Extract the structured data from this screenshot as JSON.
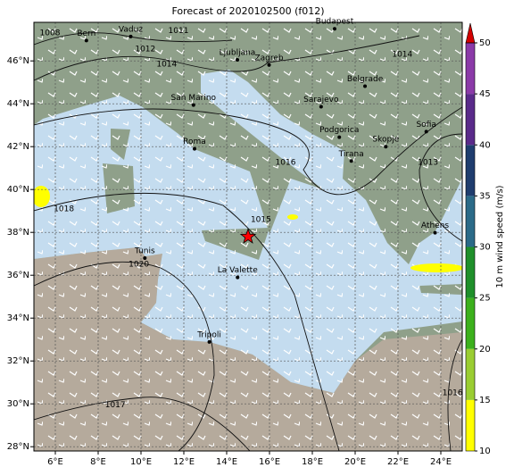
{
  "chart_data": {
    "type": "map",
    "title": "Forecast of 2020102500 (f012)",
    "xlim": [
      5,
      25
    ],
    "ylim": [
      27.8,
      47.8
    ],
    "xticks": [
      {
        "value": 6,
        "label": "6°E"
      },
      {
        "value": 8,
        "label": "8°E"
      },
      {
        "value": 10,
        "label": "10°E"
      },
      {
        "value": 12,
        "label": "12°E"
      },
      {
        "value": 14,
        "label": "14°E"
      },
      {
        "value": 16,
        "label": "16°E"
      },
      {
        "value": 18,
        "label": "18°E"
      },
      {
        "value": 20,
        "label": "20°E"
      },
      {
        "value": 22,
        "label": "22°E"
      },
      {
        "value": 24,
        "label": "24°E"
      }
    ],
    "yticks": [
      {
        "value": 28,
        "label": "28°N"
      },
      {
        "value": 30,
        "label": "30°N"
      },
      {
        "value": 32,
        "label": "32°N"
      },
      {
        "value": 34,
        "label": "34°N"
      },
      {
        "value": 36,
        "label": "36°N"
      },
      {
        "value": 38,
        "label": "38°N"
      },
      {
        "value": 40,
        "label": "40°N"
      },
      {
        "value": 42,
        "label": "42°N"
      },
      {
        "value": 44,
        "label": "44°N"
      },
      {
        "value": 46,
        "label": "46°N"
      }
    ],
    "grid": true,
    "cities": [
      {
        "name": "Bern",
        "lon": 7.45,
        "lat": 46.95
      },
      {
        "name": "Vaduz",
        "lon": 9.52,
        "lat": 47.14
      },
      {
        "name": "Budapest",
        "lon": 19.04,
        "lat": 47.5
      },
      {
        "name": "Ljubljana",
        "lon": 14.5,
        "lat": 46.05
      },
      {
        "name": "Zagreb",
        "lon": 15.98,
        "lat": 45.81
      },
      {
        "name": "San Marino",
        "lon": 12.45,
        "lat": 43.94
      },
      {
        "name": "Belgrade",
        "lon": 20.46,
        "lat": 44.82
      },
      {
        "name": "Sarajevo",
        "lon": 18.41,
        "lat": 43.86
      },
      {
        "name": "Roma",
        "lon": 12.5,
        "lat": 41.9
      },
      {
        "name": "Podgorica",
        "lon": 19.26,
        "lat": 42.44
      },
      {
        "name": "Skopje",
        "lon": 21.43,
        "lat": 42.0
      },
      {
        "name": "Sofia",
        "lon": 23.32,
        "lat": 42.7
      },
      {
        "name": "Tirana",
        "lon": 19.82,
        "lat": 41.33
      },
      {
        "name": "Athens",
        "lon": 23.73,
        "lat": 37.98
      },
      {
        "name": "Tunis",
        "lon": 10.18,
        "lat": 36.8
      },
      {
        "name": "La Valette",
        "lon": 14.51,
        "lat": 35.9
      },
      {
        "name": "Tripoli",
        "lon": 13.19,
        "lat": 32.89
      }
    ],
    "marker": {
      "lon": 15.0,
      "lat": 37.8,
      "color": "#ff0000"
    },
    "isobar_labels": [
      {
        "value": 1008,
        "lon": 5.75,
        "lat": 47.3
      },
      {
        "value": 1011,
        "lon": 11.75,
        "lat": 47.4
      },
      {
        "value": 1012,
        "lon": 10.2,
        "lat": 46.55
      },
      {
        "value": 1014,
        "lon": 11.2,
        "lat": 45.85
      },
      {
        "value": 1014,
        "lon": 22.2,
        "lat": 46.3
      },
      {
        "value": 1016,
        "lon": 16.75,
        "lat": 41.25
      },
      {
        "value": 1015,
        "lon": 15.6,
        "lat": 38.6
      },
      {
        "value": 1018,
        "lon": 6.4,
        "lat": 39.1
      },
      {
        "value": 1020,
        "lon": 9.9,
        "lat": 36.5
      },
      {
        "value": 1017,
        "lon": 8.8,
        "lat": 29.95
      },
      {
        "value": 1016,
        "lon": 24.55,
        "lat": 30.5
      },
      {
        "value": 1013,
        "lon": 23.4,
        "lat": 41.25
      }
    ],
    "colorbar": {
      "label": "10 m wind speed (m/s)",
      "ticks": [
        10,
        15,
        20,
        25,
        30,
        35,
        40,
        45,
        50
      ],
      "colors": [
        "#ffff00",
        "#9acd32",
        "#3cb01c",
        "#1f8f2a",
        "#2b6a88",
        "#1f3d6e",
        "#5a2a8a",
        "#8b3aa8"
      ],
      "extend_color": "#d40000"
    }
  }
}
